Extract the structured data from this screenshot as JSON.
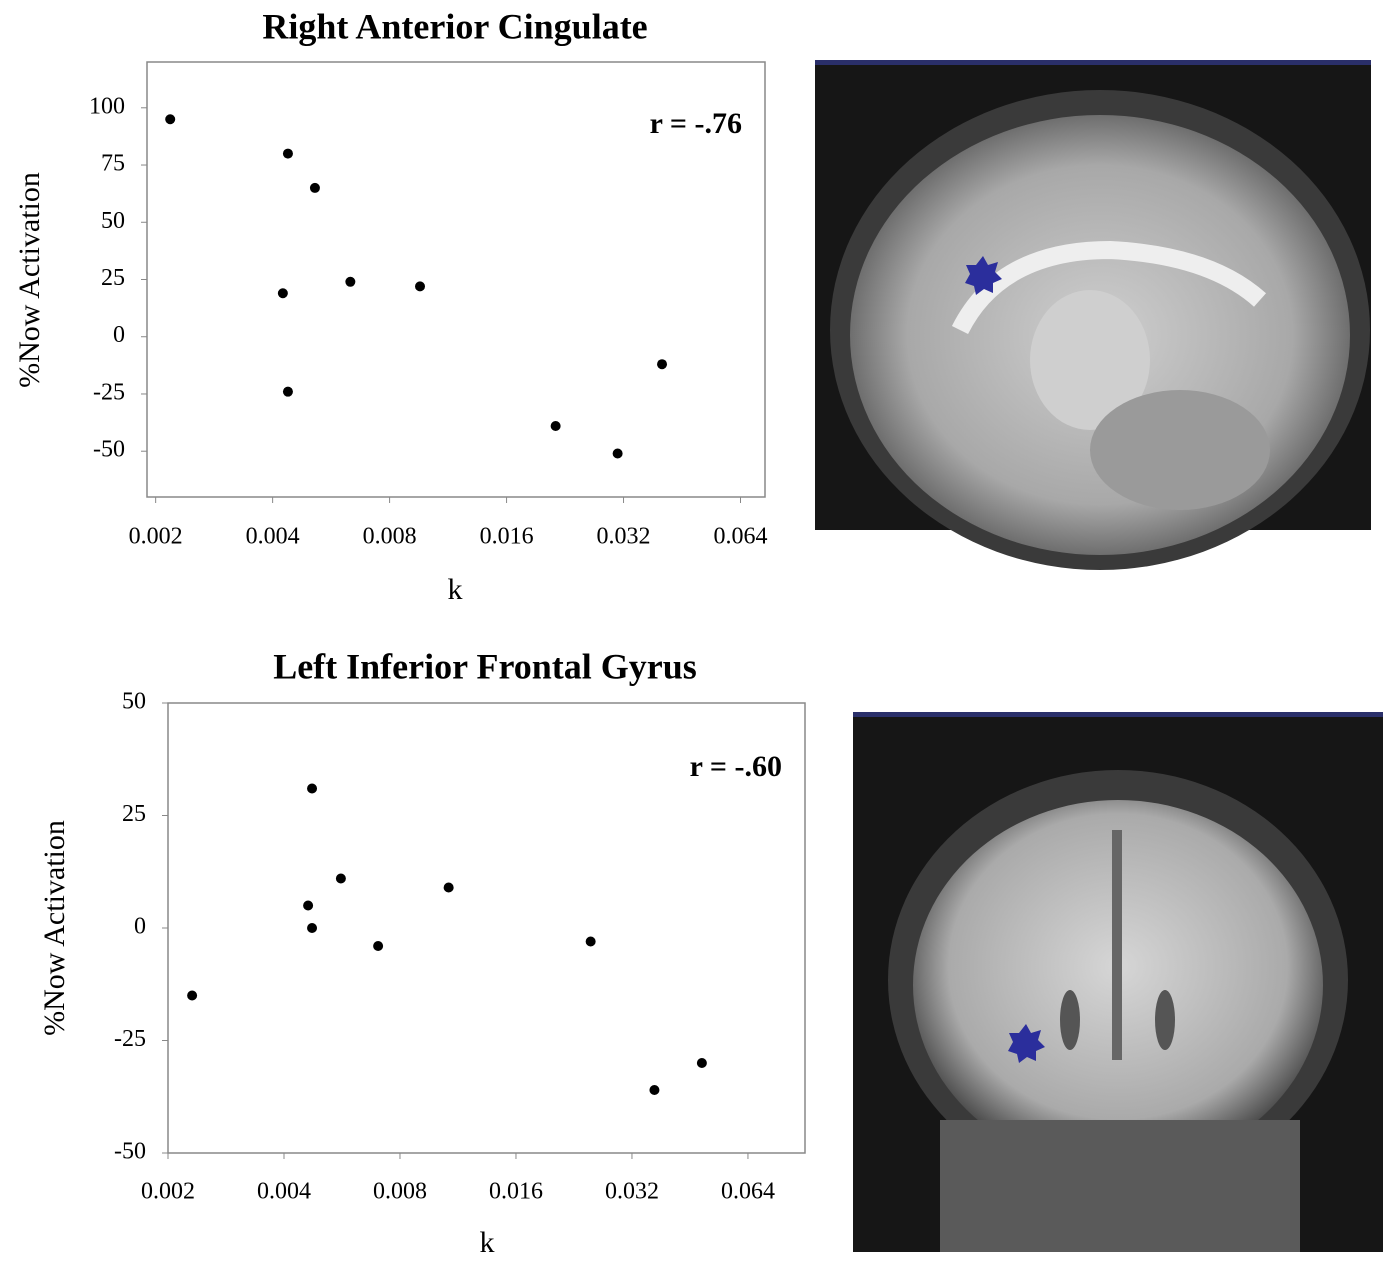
{
  "chart_data": [
    {
      "type": "scatter",
      "title": "Right Anterior Cingulate",
      "x_label": "k",
      "y_label": "%Now Activation",
      "annotation": "r = -.76",
      "xscale": "log",
      "color": "#000000",
      "xlim": [
        0.0019,
        0.074
      ],
      "ylim": [
        -70,
        120
      ],
      "xticks": [
        0.002,
        0.004,
        0.008,
        0.016,
        0.032,
        0.064
      ],
      "yticks": [
        -50,
        -25,
        0,
        25,
        50,
        75,
        100
      ],
      "x": [
        0.00218,
        0.00438,
        0.00514,
        0.00425,
        0.00634,
        0.00958,
        0.00438,
        0.0214,
        0.0309,
        0.0402
      ],
      "values": [
        95,
        80,
        65,
        19,
        24,
        22,
        -24,
        -39,
        -51,
        -12
      ]
    },
    {
      "type": "scatter",
      "title": "Left Inferior Frontal Gyrus",
      "x_label": "k",
      "y_label": "%Now Activation",
      "annotation": "r = -.60",
      "xscale": "log",
      "color": "#000000",
      "xlim": [
        0.002,
        0.09
      ],
      "ylim": [
        -50,
        50
      ],
      "xticks": [
        0.002,
        0.004,
        0.008,
        0.016,
        0.032,
        0.064
      ],
      "yticks": [
        -50,
        -25,
        0,
        25,
        50
      ],
      "x": [
        0.00231,
        0.00473,
        0.00462,
        0.00473,
        0.00562,
        0.00702,
        0.0107,
        0.025,
        0.0366,
        0.0486
      ],
      "values": [
        -15,
        31,
        5,
        0,
        11,
        -4,
        9,
        -3,
        -36,
        -30
      ]
    }
  ]
}
